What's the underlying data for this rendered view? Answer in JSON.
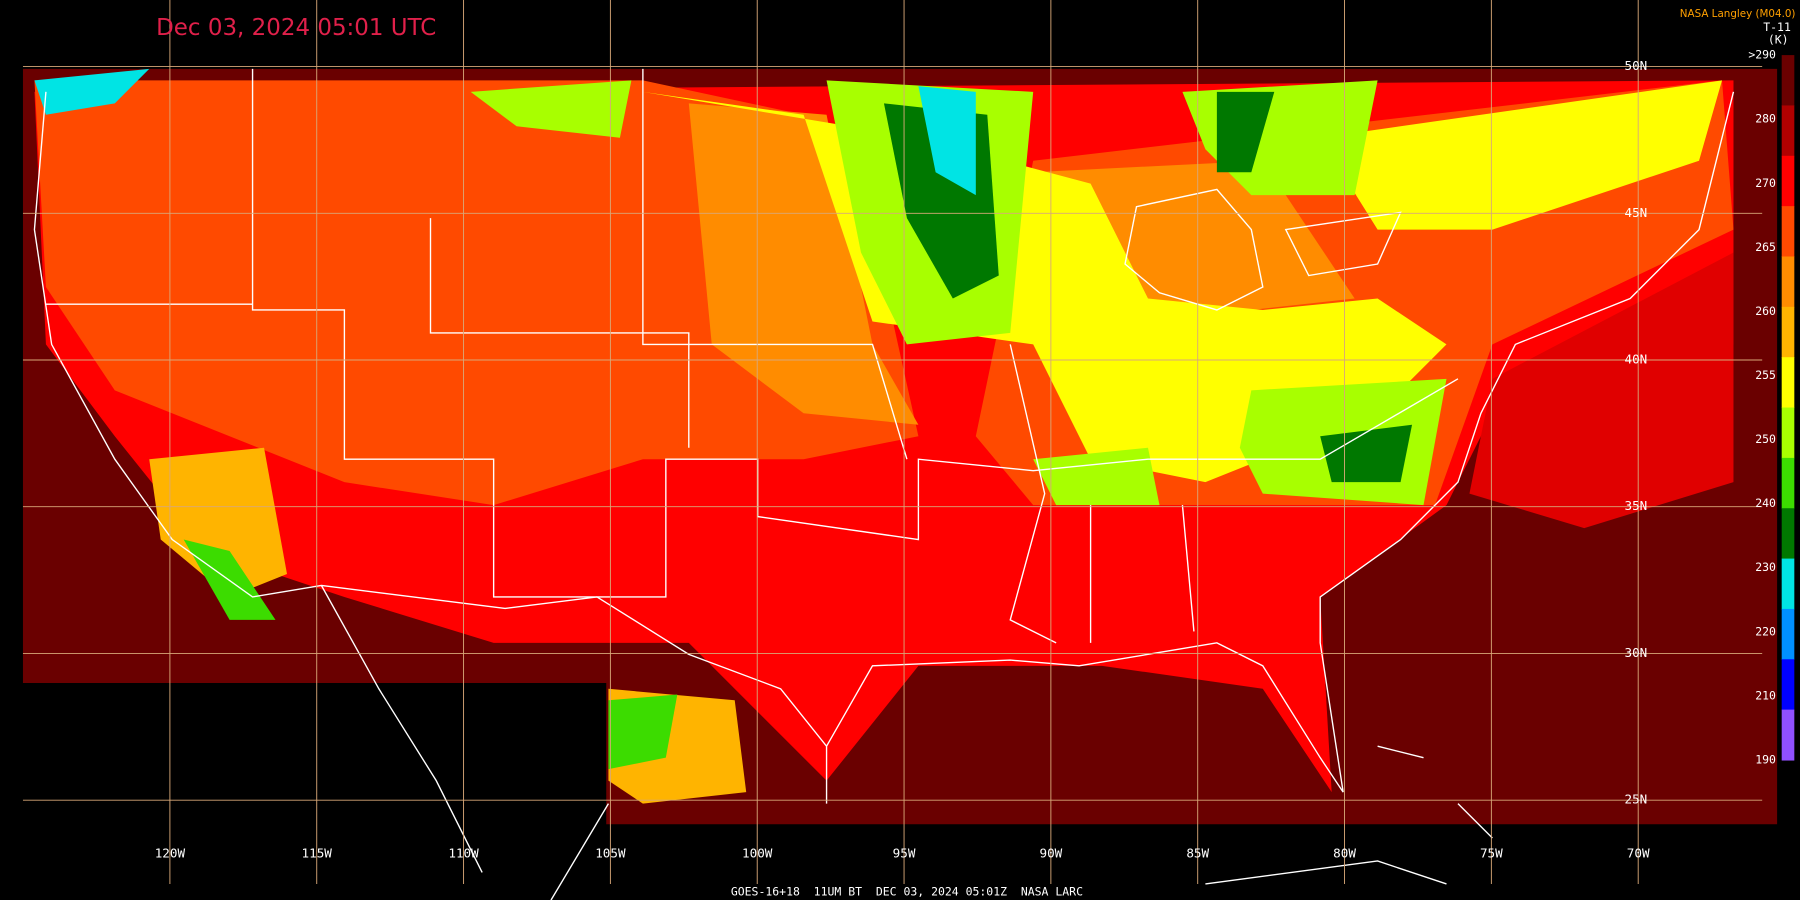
{
  "header": {
    "title": "Dec 03, 2024 05:01 UTC",
    "credit": "NASA Langley (M04.0)",
    "product": "T-11",
    "unit": "(K)"
  },
  "legend": {
    "labels": [
      ">290",
      "280",
      "270",
      "265",
      "260",
      "255",
      "250",
      "240",
      "230",
      "220",
      "210",
      "190"
    ],
    "colors": [
      "#6a0000",
      "#b00000",
      "#ff0000",
      "#ff4a00",
      "#ff8c00",
      "#ffb400",
      "#ffff00",
      "#a8ff00",
      "#3cdc00",
      "#007800",
      "#00e4e4",
      "#0090ff",
      "#0000ff",
      "#9050ff"
    ]
  },
  "latitudes": [
    "50N",
    "45N",
    "40N",
    "35N",
    "30N",
    "25N"
  ],
  "longitudes": [
    "120W",
    "115W",
    "110W",
    "105W",
    "100W",
    "95W",
    "90W",
    "85W",
    "80W",
    "75W",
    "70W"
  ],
  "footer": "GOES-16+18  11UM BT  DEC 03, 2024 05:01Z  NASA LARC"
}
